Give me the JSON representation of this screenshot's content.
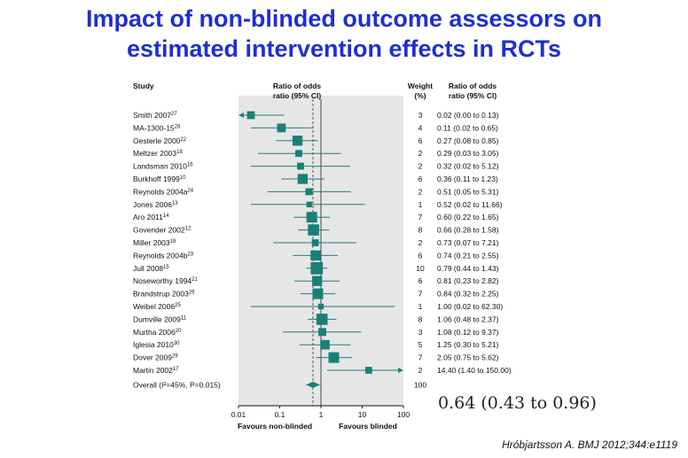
{
  "title_line1": "Impact of non-blinded outcome assessors on",
  "title_line2": "estimated intervention effects in RCTs",
  "citation": "Hróbjartsson A. BMJ 2012;344:e1119",
  "big_summary": "0.64 (0.43 to 0.96)",
  "colors": {
    "title": "#1f2fd0",
    "marker": "#1a7f77",
    "panel": "#e6e6e6"
  },
  "chart_data": {
    "type": "forest",
    "header": {
      "study": "Study",
      "ratio1": "Ratio of odds",
      "ratio2": "ratio (95% CI)",
      "weight1": "Weight",
      "weight2": "(%)",
      "rcol1": "Ratio of odds",
      "rcol2": "ratio (95% CI)"
    },
    "x_scale": "log",
    "xlim": [
      0.01,
      100
    ],
    "x_ticks": [
      "0.01",
      "0.1",
      "1",
      "10",
      "100"
    ],
    "x_tick_values": [
      0.01,
      0.1,
      1,
      10,
      100
    ],
    "xlabel_left": "Favours non-blinded",
    "xlabel_right": "Favours blinded",
    "reference_line": 1,
    "studies": [
      {
        "name": "Smith 2007",
        "sup": "27",
        "or": 0.02,
        "lo": 0.0,
        "hi": 0.13,
        "weight": "3",
        "label": "0.02 (0.00 to 0.13)"
      },
      {
        "name": "MA-1300-15",
        "sup": "28",
        "or": 0.11,
        "lo": 0.02,
        "hi": 0.65,
        "weight": "4",
        "label": "0.11 (0.02 to 0.65)"
      },
      {
        "name": "Oesterle 2000",
        "sup": "22",
        "or": 0.27,
        "lo": 0.08,
        "hi": 0.85,
        "weight": "6",
        "label": "0.27 (0.08 to 0.85)"
      },
      {
        "name": "Meltzer 2003",
        "sup": "18",
        "or": 0.29,
        "lo": 0.03,
        "hi": 3.05,
        "weight": "2",
        "label": "0.29 (0.03 to 3.05)"
      },
      {
        "name": "Landsman 2010",
        "sup": "16",
        "or": 0.32,
        "lo": 0.02,
        "hi": 5.12,
        "weight": "2",
        "label": "0.32 (0.02 to 5.12)"
      },
      {
        "name": "Burkhoff 1999",
        "sup": "10",
        "or": 0.36,
        "lo": 0.11,
        "hi": 1.23,
        "weight": "6",
        "label": "0.36 (0.11 to 1.23)"
      },
      {
        "name": "Reynolds 2004a",
        "sup": "24",
        "or": 0.51,
        "lo": 0.05,
        "hi": 5.31,
        "weight": "2",
        "label": "0.51 (0.05 to 5.31)"
      },
      {
        "name": "Jones 2006",
        "sup": "13",
        "or": 0.52,
        "lo": 0.02,
        "hi": 11.66,
        "weight": "1",
        "label": "0.52 (0.02 to 11.66)"
      },
      {
        "name": "Aro 2011",
        "sup": "14",
        "or": 0.6,
        "lo": 0.22,
        "hi": 1.65,
        "weight": "7",
        "label": "0.60 (0.22 to 1.65)"
      },
      {
        "name": "Govender 2002",
        "sup": "12",
        "or": 0.66,
        "lo": 0.28,
        "hi": 1.58,
        "weight": "8",
        "label": "0.66 (0.28 to 1.58)"
      },
      {
        "name": "Miller 2003",
        "sup": "19",
        "or": 0.73,
        "lo": 0.07,
        "hi": 7.21,
        "weight": "2",
        "label": "0.73 (0.07 to 7.21)"
      },
      {
        "name": "Reynolds 2004b",
        "sup": "23",
        "or": 0.74,
        "lo": 0.21,
        "hi": 2.55,
        "weight": "6",
        "label": "0.74 (0.21 to 2.55)"
      },
      {
        "name": "Jull 2008",
        "sup": "15",
        "or": 0.79,
        "lo": 0.44,
        "hi": 1.43,
        "weight": "10",
        "label": "0.79 (0.44 to 1.43)"
      },
      {
        "name": "Noseworthy 1994",
        "sup": "21",
        "or": 0.81,
        "lo": 0.23,
        "hi": 2.82,
        "weight": "6",
        "label": "0.81 (0.23 to 2.82)"
      },
      {
        "name": "Brandstrup 2003",
        "sup": "26",
        "or": 0.84,
        "lo": 0.32,
        "hi": 2.25,
        "weight": "7",
        "label": "0.84 (0.32 to 2.25)"
      },
      {
        "name": "Weibel 2006",
        "sup": "25",
        "or": 1.0,
        "lo": 0.02,
        "hi": 62.3,
        "weight": "1",
        "label": "1.00 (0.02 to 62.30)"
      },
      {
        "name": "Dumville 2009",
        "sup": "11",
        "or": 1.06,
        "lo": 0.48,
        "hi": 2.37,
        "weight": "8",
        "label": "1.06 (0.48 to 2.37)"
      },
      {
        "name": "Murtha 2006",
        "sup": "20",
        "or": 1.08,
        "lo": 0.12,
        "hi": 9.37,
        "weight": "3",
        "label": "1.08 (0.12 to 9.37)"
      },
      {
        "name": "Iglesia 2010",
        "sup": "30",
        "or": 1.25,
        "lo": 0.3,
        "hi": 5.21,
        "weight": "5",
        "label": "1.25 (0.30 to 5.21)"
      },
      {
        "name": "Dover 2009",
        "sup": "29",
        "or": 2.05,
        "lo": 0.75,
        "hi": 5.62,
        "weight": "7",
        "label": "2.05 (0.75 to 5.62)"
      },
      {
        "name": "Martin 2002",
        "sup": "17",
        "or": 14.4,
        "lo": 1.4,
        "hi": 150.0,
        "weight": "2",
        "label": "14.40 (1.40 to 150.00)"
      }
    ],
    "overall": {
      "name": "Overall (I²=45%, P=0.015)",
      "or": 0.64,
      "lo": 0.43,
      "hi": 0.96,
      "weight": "100",
      "label": "0.64 (0.43 to 0.96)"
    }
  }
}
